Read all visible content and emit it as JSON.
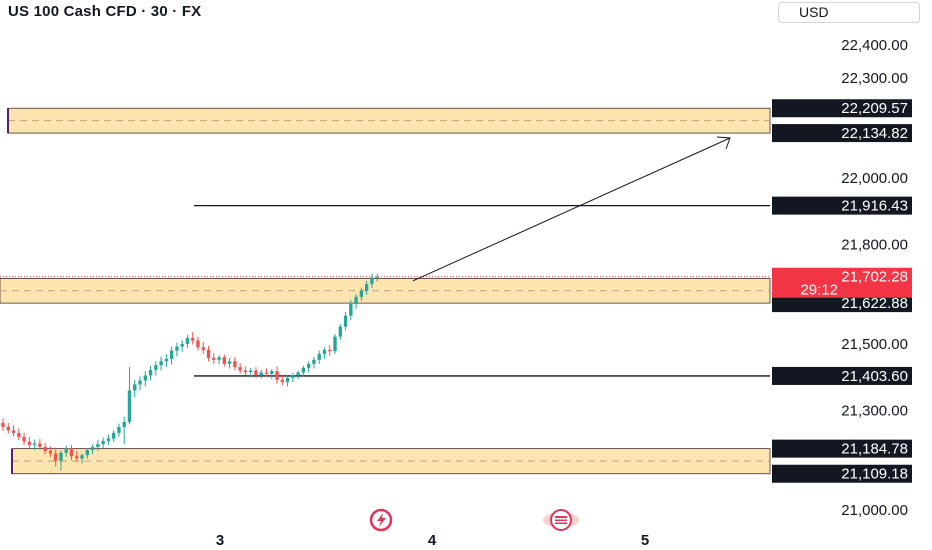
{
  "header": {
    "title": "US 100 Cash CFD · 30 · FX",
    "currency": "USD"
  },
  "colors": {
    "up": "#26a69a",
    "down": "#ef5350",
    "zone_fill": "#fde5b0",
    "zone_border": "#4a2a2a",
    "badge": "#131722",
    "last_price": "#f23645",
    "text": "#131722"
  },
  "icons": [
    "lightning-event-icon",
    "flag-event-icon"
  ],
  "chart_data": {
    "type": "candlestick",
    "y_axis": {
      "ylim": [
        20950,
        22450
      ],
      "ticks": [
        "22,400.00",
        "22,300.00",
        "22,000.00",
        "21,800.00",
        "21,500.00",
        "21,300.00",
        "21,000.00"
      ],
      "tick_values": [
        22400,
        22300,
        22000,
        21800,
        21500,
        21300,
        21000
      ]
    },
    "x_axis": {
      "ticks": [
        "3",
        "4",
        "5"
      ]
    },
    "price_labels": [
      {
        "text": "22,209.57",
        "value": 22209.57
      },
      {
        "text": "22,134.82",
        "value": 22134.82
      },
      {
        "text": "21,916.43",
        "value": 21916.43
      },
      {
        "text": "21,697.21",
        "value": 21697.21
      },
      {
        "text": "21,622.88",
        "value": 21622.88
      },
      {
        "text": "21,403.60",
        "value": 21403.6
      },
      {
        "text": "21,184.78",
        "value": 21184.78
      },
      {
        "text": "21,109.18",
        "value": 21109.18
      }
    ],
    "last_price": {
      "price": "21,702.28",
      "value": 21702.28,
      "countdown": "29:12"
    },
    "zones": [
      {
        "top": 22209.57,
        "bottom": 22134.82
      },
      {
        "top": 21697.21,
        "bottom": 21622.88
      },
      {
        "top": 21184.78,
        "bottom": 21109.18
      }
    ],
    "levels": [
      21916.43,
      21403.6
    ],
    "projection": {
      "from": 21690,
      "to": 22120
    },
    "candles": [
      [
        21262,
        21275,
        21238,
        21250
      ],
      [
        21250,
        21262,
        21230,
        21240
      ],
      [
        21240,
        21255,
        21222,
        21232
      ],
      [
        21232,
        21246,
        21210,
        21220
      ],
      [
        21220,
        21232,
        21196,
        21206
      ],
      [
        21206,
        21220,
        21185,
        21196
      ],
      [
        21196,
        21212,
        21180,
        21200
      ],
      [
        21200,
        21214,
        21182,
        21190
      ],
      [
        21190,
        21202,
        21168,
        21178
      ],
      [
        21178,
        21192,
        21160,
        21170
      ],
      [
        21170,
        21188,
        21130,
        21148
      ],
      [
        21148,
        21180,
        21118,
        21172
      ],
      [
        21172,
        21194,
        21160,
        21185
      ],
      [
        21185,
        21196,
        21150,
        21162
      ],
      [
        21162,
        21178,
        21145,
        21155
      ],
      [
        21155,
        21170,
        21140,
        21165
      ],
      [
        21165,
        21186,
        21155,
        21180
      ],
      [
        21180,
        21198,
        21168,
        21190
      ],
      [
        21190,
        21210,
        21178,
        21198
      ],
      [
        21198,
        21218,
        21185,
        21208
      ],
      [
        21208,
        21228,
        21195,
        21215
      ],
      [
        21215,
        21240,
        21205,
        21232
      ],
      [
        21232,
        21260,
        21220,
        21250
      ],
      [
        21250,
        21280,
        21198,
        21265
      ],
      [
        21265,
        21430,
        21258,
        21360
      ],
      [
        21360,
        21392,
        21340,
        21378
      ],
      [
        21378,
        21402,
        21360,
        21390
      ],
      [
        21390,
        21418,
        21372,
        21405
      ],
      [
        21405,
        21434,
        21390,
        21422
      ],
      [
        21422,
        21448,
        21405,
        21436
      ],
      [
        21436,
        21462,
        21420,
        21448
      ],
      [
        21448,
        21470,
        21430,
        21455
      ],
      [
        21455,
        21492,
        21438,
        21480
      ],
      [
        21480,
        21504,
        21462,
        21492
      ],
      [
        21492,
        21512,
        21475,
        21500
      ],
      [
        21500,
        21528,
        21488,
        21518
      ],
      [
        21518,
        21536,
        21498,
        21510
      ],
      [
        21510,
        21522,
        21480,
        21490
      ],
      [
        21490,
        21506,
        21470,
        21482
      ],
      [
        21482,
        21494,
        21448,
        21458
      ],
      [
        21458,
        21472,
        21440,
        21452
      ],
      [
        21452,
        21466,
        21438,
        21460
      ],
      [
        21460,
        21468,
        21432,
        21440
      ],
      [
        21440,
        21458,
        21426,
        21448
      ],
      [
        21448,
        21460,
        21420,
        21430
      ],
      [
        21430,
        21442,
        21410,
        21420
      ],
      [
        21420,
        21432,
        21405,
        21415
      ],
      [
        21415,
        21428,
        21400,
        21420
      ],
      [
        21420,
        21430,
        21398,
        21406
      ],
      [
        21406,
        21422,
        21396,
        21414
      ],
      [
        21414,
        21426,
        21402,
        21410
      ],
      [
        21410,
        21424,
        21395,
        21418
      ],
      [
        21418,
        21432,
        21380,
        21392
      ],
      [
        21392,
        21408,
        21375,
        21385
      ],
      [
        21385,
        21404,
        21372,
        21398
      ],
      [
        21398,
        21412,
        21385,
        21406
      ],
      [
        21406,
        21420,
        21394,
        21414
      ],
      [
        21414,
        21434,
        21402,
        21428
      ],
      [
        21428,
        21448,
        21414,
        21440
      ],
      [
        21440,
        21462,
        21426,
        21452
      ],
      [
        21452,
        21480,
        21440,
        21470
      ],
      [
        21470,
        21490,
        21455,
        21482
      ],
      [
        21482,
        21496,
        21465,
        21478
      ],
      [
        21478,
        21530,
        21470,
        21522
      ],
      [
        21522,
        21560,
        21512,
        21552
      ],
      [
        21552,
        21596,
        21540,
        21585
      ],
      [
        21585,
        21632,
        21572,
        21620
      ],
      [
        21620,
        21650,
        21606,
        21642
      ],
      [
        21642,
        21668,
        21630,
        21660
      ],
      [
        21660,
        21690,
        21648,
        21680
      ],
      [
        21680,
        21712,
        21668,
        21700
      ],
      [
        21700,
        21712,
        21688,
        21702
      ]
    ]
  }
}
